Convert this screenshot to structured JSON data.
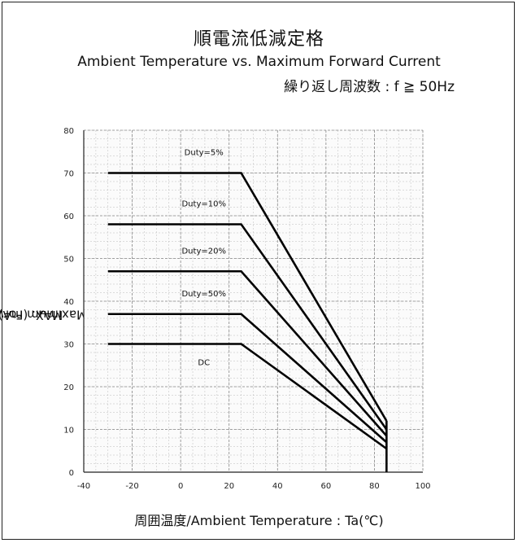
{
  "chart_data": {
    "type": "line",
    "title": "順電流低減定格",
    "subtitle": "Ambient Temperature vs. Maximum Forward Current",
    "note": "繰り返し周波数 : f ≧ 50Hz",
    "xlabel": "周囲温度/Ambient Temperature : Ta(℃)",
    "ylabel": "許容順電流/Maximum Forward Current : I",
    "ylabel_sub": "F",
    "ylabel_tail": " MAX. (mA)",
    "xlim": [
      -40,
      100
    ],
    "ylim": [
      0,
      80
    ],
    "xticks": [
      -40,
      -20,
      0,
      20,
      40,
      60,
      80,
      100
    ],
    "yticks": [
      0,
      10,
      20,
      30,
      40,
      50,
      60,
      70,
      80
    ],
    "grid": true,
    "series": [
      {
        "name": "Duty=5%",
        "x": [
          -30,
          25,
          85
        ],
        "y": [
          70,
          70,
          12
        ]
      },
      {
        "name": "Duty=10%",
        "x": [
          -30,
          25,
          85
        ],
        "y": [
          58,
          58,
          10
        ]
      },
      {
        "name": "Duty=20%",
        "x": [
          -30,
          25,
          85
        ],
        "y": [
          47,
          47,
          8.5
        ]
      },
      {
        "name": "Duty=50%",
        "x": [
          -30,
          25,
          85
        ],
        "y": [
          37,
          37,
          7
        ]
      },
      {
        "name": "DC",
        "x": [
          -30,
          25,
          85
        ],
        "y": [
          30,
          30,
          5.5
        ]
      }
    ],
    "vertical_line": {
      "x": 85,
      "y": [
        0,
        12
      ]
    }
  }
}
